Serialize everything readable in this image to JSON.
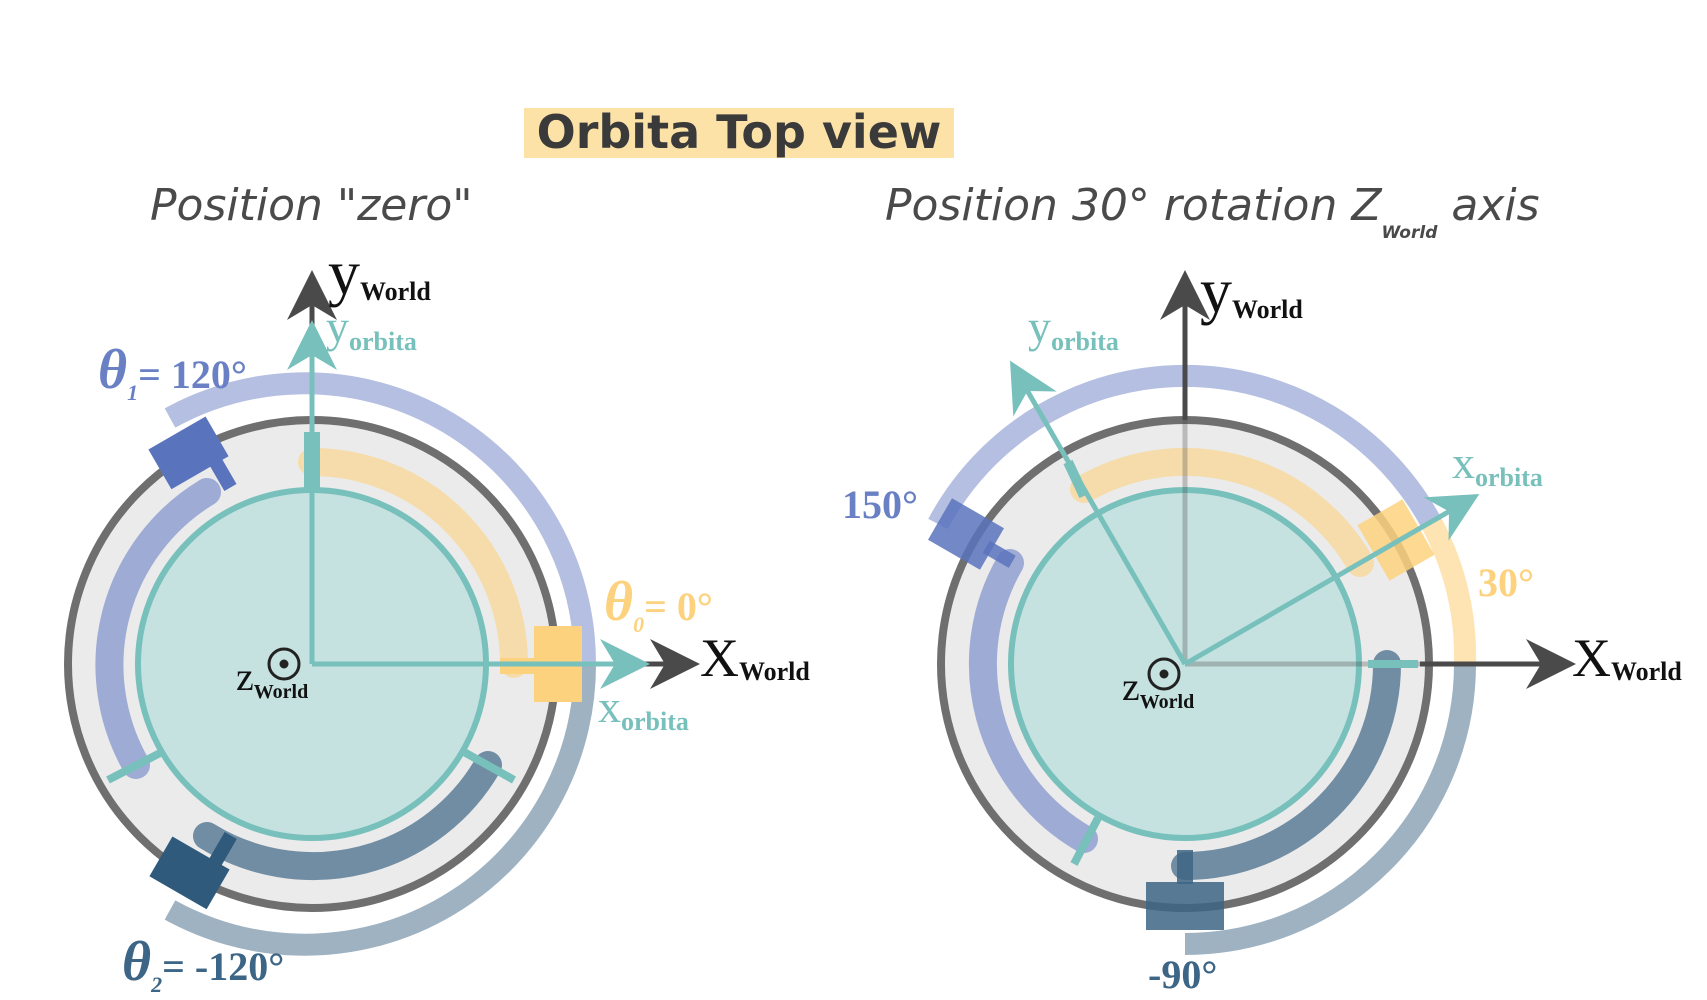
{
  "title": "Orbita Top view",
  "left_panel": {
    "subtitle": "Position \"zero\"",
    "y_world": "y",
    "y_world_sub": "World",
    "x_world": "X",
    "x_world_sub": "World",
    "y_orbita": "y",
    "y_orbita_sub": "orbita",
    "x_orbita": "x",
    "x_orbita_sub": "orbita",
    "z_world": "z",
    "z_world_sub": "World",
    "theta1_symbol": "θ",
    "theta1_index": "1",
    "theta1_value": "= 120°",
    "theta0_symbol": "θ",
    "theta0_index": "0",
    "theta0_value": "= 0°",
    "theta2_symbol": "θ",
    "theta2_index": "2",
    "theta2_value": "= -120°"
  },
  "right_panel": {
    "subtitle_prefix": "Position 30° rotation Z",
    "subtitle_sub": "World",
    "subtitle_suffix": " axis",
    "y_world": "y",
    "y_world_sub": "World",
    "x_world": "X",
    "x_world_sub": "World",
    "y_orbita": "y",
    "y_orbita_sub": "orbita",
    "x_orbita": "x",
    "x_orbita_sub": "orbita",
    "z_world": "z",
    "z_world_sub": "World",
    "angle_150": "150°",
    "angle_30": "30°",
    "angle_neg90": "-90°"
  },
  "colors": {
    "disk_blue": "#6a80c4",
    "disk_yellow": "#fdd27f",
    "disk_dark": "#3d6585",
    "teal": "#78c0bb",
    "axis": "#4a4a4a",
    "ring": "#6f6f6f",
    "platter": "#ebebeb",
    "inner": "#c5e2e0"
  }
}
